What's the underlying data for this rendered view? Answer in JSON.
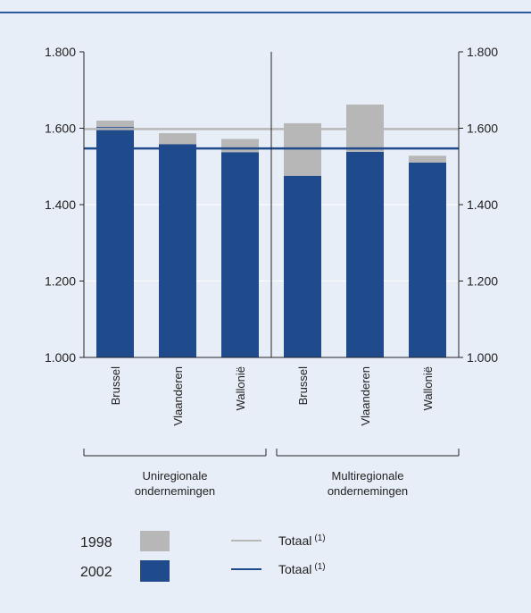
{
  "chart_data": {
    "type": "bar",
    "categories": [
      "Brussel",
      "Vlaanderen",
      "Wallonië",
      "Brussel",
      "Vlaanderen",
      "Wallonië"
    ],
    "groups": [
      {
        "label_line1": "Uniregionale",
        "label_line2": "ondernemingen",
        "category_indices": [
          0,
          1,
          2
        ]
      },
      {
        "label_line1": "Multiregionale",
        "label_line2": "ondernemingen",
        "category_indices": [
          3,
          4,
          5
        ]
      }
    ],
    "series": [
      {
        "name": "1998",
        "values": [
          1620,
          1587,
          1572,
          1613,
          1662,
          1528
        ]
      },
      {
        "name": "2002",
        "values": [
          1603,
          1558,
          1537,
          1475,
          1538,
          1510
        ]
      }
    ],
    "reference_lines": [
      {
        "name": "Totaal",
        "series": "1998",
        "value": 1598
      },
      {
        "name": "Totaal",
        "series": "2002",
        "value": 1547
      }
    ],
    "ylim": [
      1000,
      1800
    ],
    "yticks": [
      1000,
      1200,
      1400,
      1600,
      1800
    ],
    "ytick_labels": [
      "1.000",
      "1.200",
      "1.400",
      "1.600",
      "1.800"
    ],
    "grid": true,
    "legend_position": "bottom"
  },
  "legend": {
    "year_1998": "1998",
    "year_2002": "2002",
    "totaal_1998": "Totaal",
    "totaal_2002": "Totaal",
    "footnote_ref": "(1)"
  },
  "colors": {
    "background": "#e8eef7",
    "bar_1998": "#b7b7b7",
    "bar_2002": "#1f4a8c",
    "line_1998": "#b7b7b7",
    "line_2002": "#1f4a8c",
    "accent": "#2a5a9c"
  }
}
